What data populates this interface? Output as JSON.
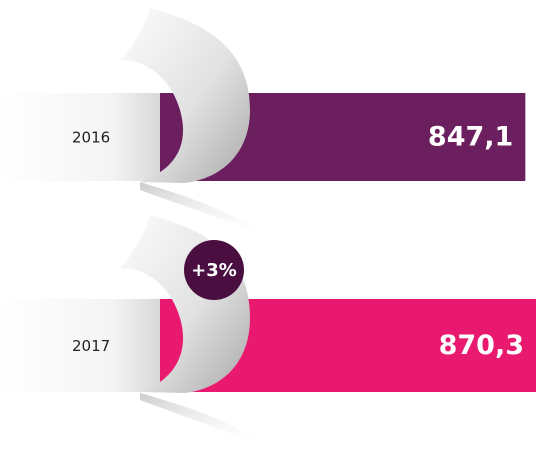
{
  "chart_data": {
    "type": "bar",
    "categories": [
      "2016",
      "2017"
    ],
    "values": [
      847.1,
      870.3
    ],
    "value_labels": [
      "847,1",
      "870,3"
    ],
    "colors": [
      "#6b1f5f",
      "#e8196f"
    ],
    "annotation": "+3%"
  }
}
